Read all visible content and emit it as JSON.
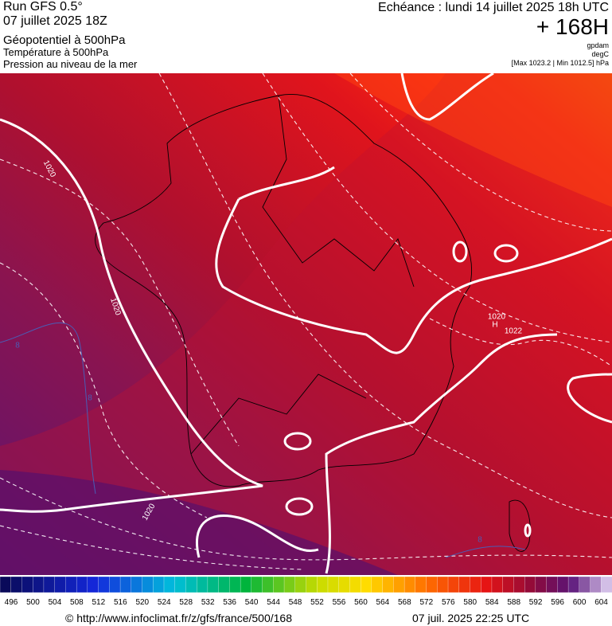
{
  "header": {
    "run": "Run GFS 0.5°",
    "run_date": "07 juillet 2025 18Z",
    "field_1": "Géopotentiel à 500hPa",
    "field_2": "Température à 500hPa",
    "field_3": "Pression au niveau de la mer",
    "forecast": "Echéance : lundi 14 juillet 2025 18h UTC",
    "lead_time": "+ 168H",
    "unit_1": "gpdam",
    "unit_2": "degC",
    "pressure_range": "[Max 1023.2 | Min 1012.5] hPa"
  },
  "map": {
    "isobar_labels": [
      "1020",
      "1020",
      "1020",
      "1020",
      "1022"
    ],
    "high_label": "H",
    "isotherm_labels": [
      "8",
      "8",
      "8"
    ]
  },
  "colorbar": {
    "labels": [
      496,
      500,
      504,
      508,
      512,
      516,
      520,
      524,
      528,
      532,
      536,
      540,
      544,
      548,
      552,
      556,
      560,
      564,
      568,
      572,
      576,
      580,
      584,
      588,
      592,
      596,
      600,
      604
    ]
  },
  "footer": {
    "source": "© http://www.infoclimat.fr/z/gfs/france/500/168",
    "timestamp": "07 juil. 2025 22:25 UTC"
  }
}
